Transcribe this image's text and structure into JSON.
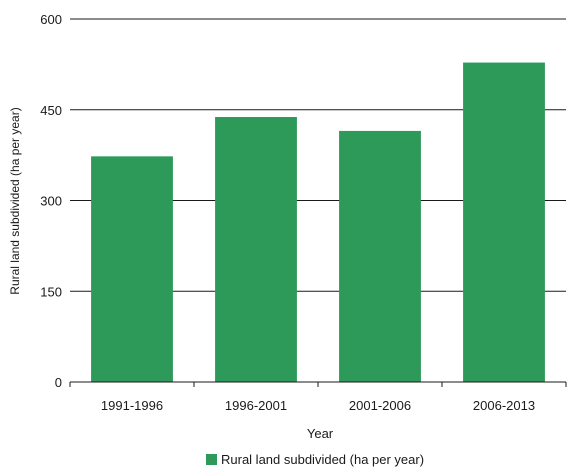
{
  "chart_data": {
    "type": "bar",
    "title": "",
    "categories": [
      "1991-1996",
      "1996-2001",
      "2001-2006",
      "2006-2013"
    ],
    "series": [
      {
        "name": "Rural land subdivided (ha per year)",
        "values": [
          373,
          438,
          415,
          528
        ],
        "color": "#2e9a5a"
      }
    ],
    "xlabel": "Year",
    "ylabel": "Rural land subdivided (ha per year)",
    "ylim": [
      0,
      600
    ],
    "yticks": [
      0,
      150,
      300,
      450,
      600
    ],
    "grid": true,
    "legend": "bottom-center"
  }
}
